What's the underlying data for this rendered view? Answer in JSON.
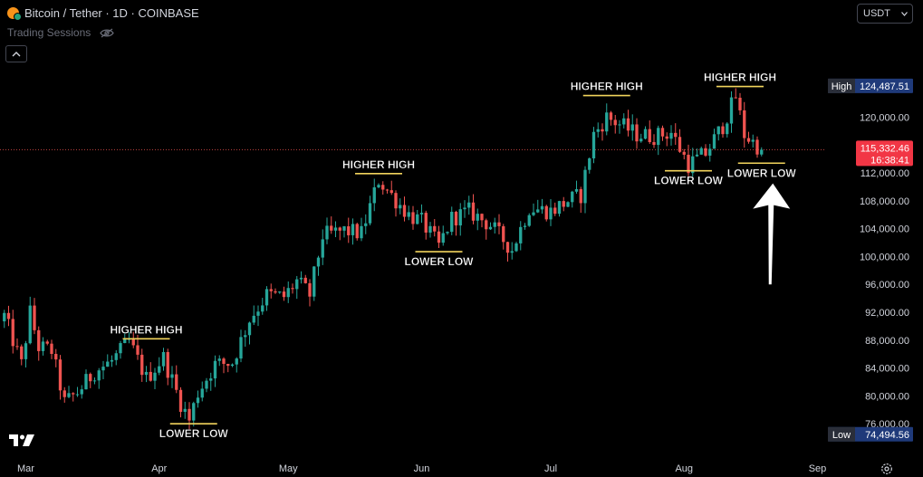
{
  "header": {
    "title": "Bitcoin / Tether · 1D · COINBASE",
    "sessions_label": "Trading Sessions"
  },
  "currency": {
    "selected": "USDT"
  },
  "badges": {
    "high_label": "High",
    "high_value": "124,487.51",
    "low_label": "Low",
    "low_value": "74,494.56",
    "price_value": "115,332.46",
    "countdown": "16:38:41"
  },
  "colors": {
    "up": "#26a69a",
    "down": "#ef5350",
    "annotation_line": "#f2d45c",
    "price_badge": "#f23645",
    "extreme_badge": "#1f3a7a",
    "arrow": "#ffffff"
  },
  "chart_data": {
    "type": "candlestick",
    "title": "Bitcoin / Tether · 1D · COINBASE",
    "x_ticks": [
      "Mar",
      "Apr",
      "May",
      "Jun",
      "Jul",
      "Aug",
      "Sep"
    ],
    "x_tick_dates": [
      "2025-03-01",
      "2025-04-01",
      "2025-05-01",
      "2025-06-01",
      "2025-07-01",
      "2025-08-01",
      "2025-09-01"
    ],
    "y_ticks": [
      "120,000.00",
      "116,000.00",
      "112,000.00",
      "108,000.00",
      "104,000.00",
      "100,000.00",
      "96,000.00",
      "92,000.00",
      "88,000.00",
      "84,000.00",
      "80,000.00",
      "76,000.00"
    ],
    "y_tick_values": [
      120000,
      116000,
      112000,
      108000,
      104000,
      100000,
      96000,
      92000,
      88000,
      84000,
      80000,
      76000
    ],
    "ylim": [
      72000,
      128500
    ],
    "xlim": [
      "2025-02-23",
      "2025-09-03"
    ],
    "high": 124487.51,
    "low": 74494.56,
    "last_price": 115332.46,
    "close_path": [
      {
        "date": "2025-02-24",
        "close": 91500
      },
      {
        "date": "2025-02-28",
        "close": 84500
      },
      {
        "date": "2025-03-02",
        "close": 92000
      },
      {
        "date": "2025-03-04",
        "close": 87000
      },
      {
        "date": "2025-03-07",
        "close": 86500
      },
      {
        "date": "2025-03-10",
        "close": 79000
      },
      {
        "date": "2025-03-13",
        "close": 80500
      },
      {
        "date": "2025-03-17",
        "close": 83500
      },
      {
        "date": "2025-03-21",
        "close": 85000
      },
      {
        "date": "2025-03-25",
        "close": 87800
      },
      {
        "date": "2025-03-29",
        "close": 82500
      },
      {
        "date": "2025-04-02",
        "close": 85500
      },
      {
        "date": "2025-04-06",
        "close": 79000
      },
      {
        "date": "2025-04-08",
        "close": 76500
      },
      {
        "date": "2025-04-10",
        "close": 80500
      },
      {
        "date": "2025-04-14",
        "close": 84500
      },
      {
        "date": "2025-04-18",
        "close": 84800
      },
      {
        "date": "2025-04-22",
        "close": 91000
      },
      {
        "date": "2025-04-26",
        "close": 94500
      },
      {
        "date": "2025-04-30",
        "close": 94200
      },
      {
        "date": "2025-05-03",
        "close": 96500
      },
      {
        "date": "2025-05-06",
        "close": 94500
      },
      {
        "date": "2025-05-09",
        "close": 103000
      },
      {
        "date": "2025-05-14",
        "close": 103700
      },
      {
        "date": "2025-05-18",
        "close": 103300
      },
      {
        "date": "2025-05-22",
        "close": 111000
      },
      {
        "date": "2025-05-25",
        "close": 108800
      },
      {
        "date": "2025-05-29",
        "close": 106000
      },
      {
        "date": "2025-06-01",
        "close": 105000
      },
      {
        "date": "2025-06-05",
        "close": 101500
      },
      {
        "date": "2025-06-08",
        "close": 105500
      },
      {
        "date": "2025-06-12",
        "close": 106500
      },
      {
        "date": "2025-06-17",
        "close": 104500
      },
      {
        "date": "2025-06-22",
        "close": 101000
      },
      {
        "date": "2025-06-26",
        "close": 107000
      },
      {
        "date": "2025-07-01",
        "close": 106500
      },
      {
        "date": "2025-07-05",
        "close": 108000
      },
      {
        "date": "2025-07-08",
        "close": 108800
      },
      {
        "date": "2025-07-11",
        "close": 117500
      },
      {
        "date": "2025-07-14",
        "close": 120000
      },
      {
        "date": "2025-07-17",
        "close": 119000
      },
      {
        "date": "2025-07-21",
        "close": 117500
      },
      {
        "date": "2025-07-25",
        "close": 117300
      },
      {
        "date": "2025-07-29",
        "close": 117800
      },
      {
        "date": "2025-08-02",
        "close": 113200
      },
      {
        "date": "2025-08-06",
        "close": 114800
      },
      {
        "date": "2025-08-10",
        "close": 118800
      },
      {
        "date": "2025-08-13",
        "close": 123000
      },
      {
        "date": "2025-08-15",
        "close": 117500
      },
      {
        "date": "2025-08-19",
        "close": 115332
      }
    ],
    "annotations": [
      {
        "text": "HIGHER HIGH",
        "kind": "high",
        "date": "2025-03-29",
        "price": 88200
      },
      {
        "text": "LOWER LOW",
        "kind": "low",
        "date": "2025-04-09",
        "price": 76000
      },
      {
        "text": "HIGHER HIGH",
        "kind": "high",
        "date": "2025-05-22",
        "price": 111900
      },
      {
        "text": "LOWER LOW",
        "kind": "low",
        "date": "2025-06-05",
        "price": 100700
      },
      {
        "text": "HIGHER HIGH",
        "kind": "high",
        "date": "2025-07-14",
        "price": 123100
      },
      {
        "text": "LOWER LOW",
        "kind": "low",
        "date": "2025-08-02",
        "price": 112300
      },
      {
        "text": "HIGHER HIGH",
        "kind": "high",
        "date": "2025-08-14",
        "price": 124400
      },
      {
        "text": "LOWER LOW",
        "kind": "low",
        "date": "2025-08-19",
        "price": 113400
      }
    ],
    "arrow": {
      "direction": "up",
      "from_price": 96000,
      "to_price": 110500,
      "date": "2025-08-21"
    },
    "grid": false,
    "legend": "none"
  }
}
